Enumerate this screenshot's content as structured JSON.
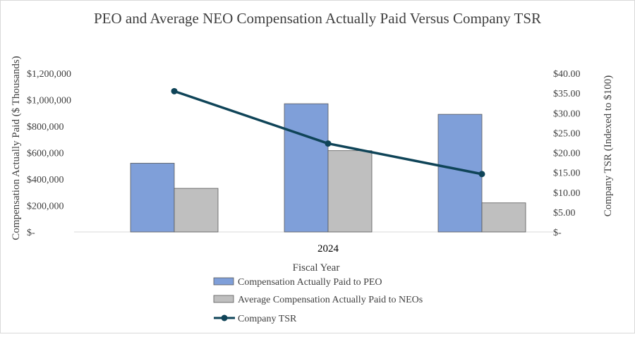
{
  "chart_data": {
    "type": "bar",
    "title": "PEO and Average NEO Compensation Actually Paid Versus Company TSR",
    "xlabel": "Fiscal Year",
    "ylabel": "Compensation Actually Paid ($ Thousands)",
    "y2label": "Company TSR (Indexed to $100)",
    "categories": [
      "",
      "2024",
      ""
    ],
    "ylim": [
      0,
      1200000
    ],
    "y2lim": [
      0,
      40
    ],
    "yticks": [
      "$-",
      "$200,000",
      "$400,000",
      "$600,000",
      "$800,000",
      "$1,000,000",
      "$1,200,000"
    ],
    "y2ticks": [
      "$-",
      "$5.00",
      "$10.00",
      "$15.00",
      "$20.00",
      "$25.00",
      "$30.00",
      "$35.00",
      "$40.00"
    ],
    "series": [
      {
        "name": "Compensation Actually Paid to PEO",
        "kind": "bar",
        "axis": "left",
        "color": "#7f9fd9",
        "values": [
          520000,
          970000,
          890000
        ]
      },
      {
        "name": "Average Compensation Actually Paid to NEOs",
        "kind": "bar",
        "axis": "left",
        "color": "#bfbfbf",
        "values": [
          330000,
          615000,
          220000
        ]
      },
      {
        "name": "Company TSR",
        "kind": "line",
        "axis": "right",
        "color": "#0f4458",
        "values": [
          35.5,
          22.3,
          14.6
        ]
      }
    ],
    "legend_position": "bottom"
  }
}
